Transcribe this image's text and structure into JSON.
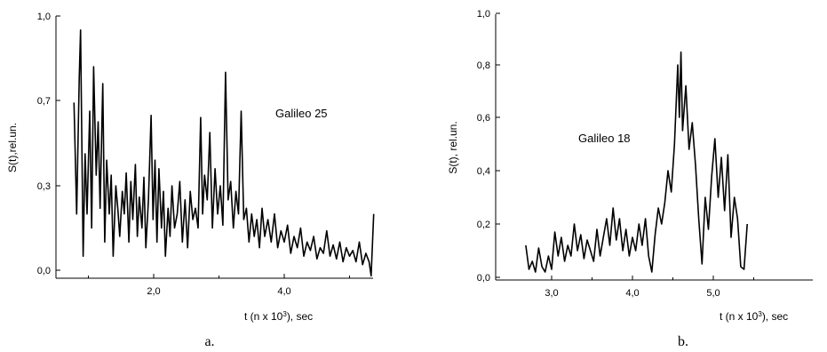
{
  "chart_data": [
    {
      "type": "line",
      "panel_caption": "a.",
      "annotation": "Galileo 25",
      "xlabel": "t (n x 10³), sec",
      "ylabel": "S(t),rel.un.",
      "xlim": [
        0.7,
        5.4
      ],
      "ylim": [
        -0.03,
        1.0
      ],
      "xticks": [
        2.0,
        4.0
      ],
      "xtick_labels": [
        "2,0",
        "4,0"
      ],
      "yticks": [
        0.0,
        0.3,
        0.7,
        1.0
      ],
      "ytick_labels": [
        "0,0",
        "0,3",
        "0,7",
        "1,0"
      ],
      "series": [
        {
          "x": [
            0.78,
            0.82,
            0.86,
            0.88,
            0.92,
            0.95,
            0.98,
            1.02,
            1.05,
            1.08,
            1.12,
            1.15,
            1.18,
            1.22,
            1.25,
            1.28,
            1.32,
            1.35,
            1.38,
            1.42,
            1.45,
            1.48,
            1.52,
            1.55,
            1.58,
            1.62,
            1.65,
            1.68,
            1.72,
            1.75,
            1.78,
            1.82,
            1.85,
            1.88,
            1.92,
            1.96,
            1.99,
            2.02,
            2.05,
            2.08,
            2.12,
            2.15,
            2.18,
            2.22,
            2.25,
            2.28,
            2.32,
            2.36,
            2.4,
            2.44,
            2.48,
            2.52,
            2.56,
            2.6,
            2.64,
            2.68,
            2.72,
            2.75,
            2.78,
            2.82,
            2.86,
            2.9,
            2.94,
            2.98,
            3.02,
            3.06,
            3.1,
            3.14,
            3.18,
            3.22,
            3.26,
            3.3,
            3.34,
            3.38,
            3.42,
            3.46,
            3.5,
            3.54,
            3.58,
            3.62,
            3.66,
            3.7,
            3.75,
            3.8,
            3.85,
            3.9,
            3.95,
            4.0,
            4.05,
            4.1,
            4.15,
            4.2,
            4.25,
            4.3,
            4.35,
            4.4,
            4.45,
            4.5,
            4.55,
            4.6,
            4.65,
            4.7,
            4.75,
            4.8,
            4.85,
            4.9,
            4.95,
            5.0,
            5.05,
            5.1,
            5.15,
            5.2,
            5.25,
            5.3,
            5.33,
            5.37
          ],
          "y": [
            0.69,
            0.2,
            0.78,
            0.95,
            0.05,
            0.45,
            0.2,
            0.65,
            0.15,
            0.82,
            0.35,
            0.6,
            0.22,
            0.76,
            0.1,
            0.42,
            0.2,
            0.35,
            0.05,
            0.3,
            0.22,
            0.12,
            0.28,
            0.2,
            0.36,
            0.1,
            0.32,
            0.18,
            0.4,
            0.12,
            0.26,
            0.15,
            0.34,
            0.08,
            0.25,
            0.63,
            0.18,
            0.42,
            0.1,
            0.38,
            0.15,
            0.28,
            0.05,
            0.22,
            0.12,
            0.3,
            0.15,
            0.2,
            0.32,
            0.1,
            0.25,
            0.08,
            0.28,
            0.18,
            0.22,
            0.15,
            0.62,
            0.2,
            0.35,
            0.25,
            0.55,
            0.15,
            0.38,
            0.2,
            0.3,
            0.16,
            0.8,
            0.25,
            0.32,
            0.15,
            0.28,
            0.2,
            0.65,
            0.18,
            0.22,
            0.1,
            0.2,
            0.12,
            0.18,
            0.08,
            0.22,
            0.12,
            0.18,
            0.1,
            0.2,
            0.08,
            0.14,
            0.1,
            0.16,
            0.06,
            0.12,
            0.08,
            0.15,
            0.05,
            0.1,
            0.07,
            0.12,
            0.04,
            0.08,
            0.06,
            0.14,
            0.05,
            0.09,
            0.04,
            0.1,
            0.03,
            0.08,
            0.05,
            0.07,
            0.03,
            0.1,
            0.02,
            0.06,
            0.03,
            -0.02,
            0.2
          ]
        }
      ]
    },
    {
      "type": "line",
      "panel_caption": "b.",
      "annotation": "Galileo 18",
      "xlabel": "t (n x 10³), sec",
      "ylabel": "S(t), rel.un.",
      "xlim": [
        2.55,
        5.55
      ],
      "ylim": [
        0.0,
        1.0
      ],
      "xticks": [
        3.0,
        4.0,
        5.0
      ],
      "xtick_labels": [
        "3,0",
        "4,0",
        "5,0"
      ],
      "yticks": [
        0.0,
        0.2,
        0.4,
        0.6,
        0.8,
        1.0
      ],
      "ytick_labels": [
        "0,0",
        "0,2",
        "0,4",
        "0,6",
        "0,8",
        "1,0"
      ],
      "series": [
        {
          "x": [
            2.68,
            2.72,
            2.76,
            2.8,
            2.84,
            2.88,
            2.92,
            2.96,
            3.0,
            3.04,
            3.08,
            3.12,
            3.16,
            3.2,
            3.24,
            3.28,
            3.32,
            3.36,
            3.4,
            3.44,
            3.48,
            3.52,
            3.56,
            3.6,
            3.64,
            3.68,
            3.72,
            3.76,
            3.8,
            3.84,
            3.88,
            3.92,
            3.96,
            4.0,
            4.04,
            4.08,
            4.12,
            4.16,
            4.2,
            4.24,
            4.28,
            4.32,
            4.36,
            4.4,
            4.44,
            4.48,
            4.52,
            4.56,
            4.58,
            4.6,
            4.62,
            4.66,
            4.7,
            4.74,
            4.78,
            4.82,
            4.86,
            4.9,
            4.94,
            4.98,
            5.02,
            5.06,
            5.1,
            5.14,
            5.18,
            5.22,
            5.26,
            5.3,
            5.34,
            5.38,
            5.42
          ],
          "y": [
            0.12,
            0.03,
            0.06,
            0.02,
            0.11,
            0.04,
            0.02,
            0.08,
            0.03,
            0.17,
            0.08,
            0.15,
            0.06,
            0.12,
            0.08,
            0.2,
            0.1,
            0.16,
            0.07,
            0.14,
            0.1,
            0.06,
            0.18,
            0.08,
            0.15,
            0.22,
            0.12,
            0.26,
            0.14,
            0.22,
            0.1,
            0.18,
            0.08,
            0.15,
            0.1,
            0.2,
            0.12,
            0.22,
            0.08,
            0.02,
            0.16,
            0.26,
            0.2,
            0.28,
            0.4,
            0.32,
            0.5,
            0.8,
            0.6,
            0.85,
            0.55,
            0.72,
            0.48,
            0.58,
            0.42,
            0.22,
            0.05,
            0.3,
            0.18,
            0.38,
            0.52,
            0.3,
            0.45,
            0.25,
            0.46,
            0.15,
            0.3,
            0.22,
            0.04,
            0.03,
            0.2
          ]
        }
      ]
    }
  ]
}
